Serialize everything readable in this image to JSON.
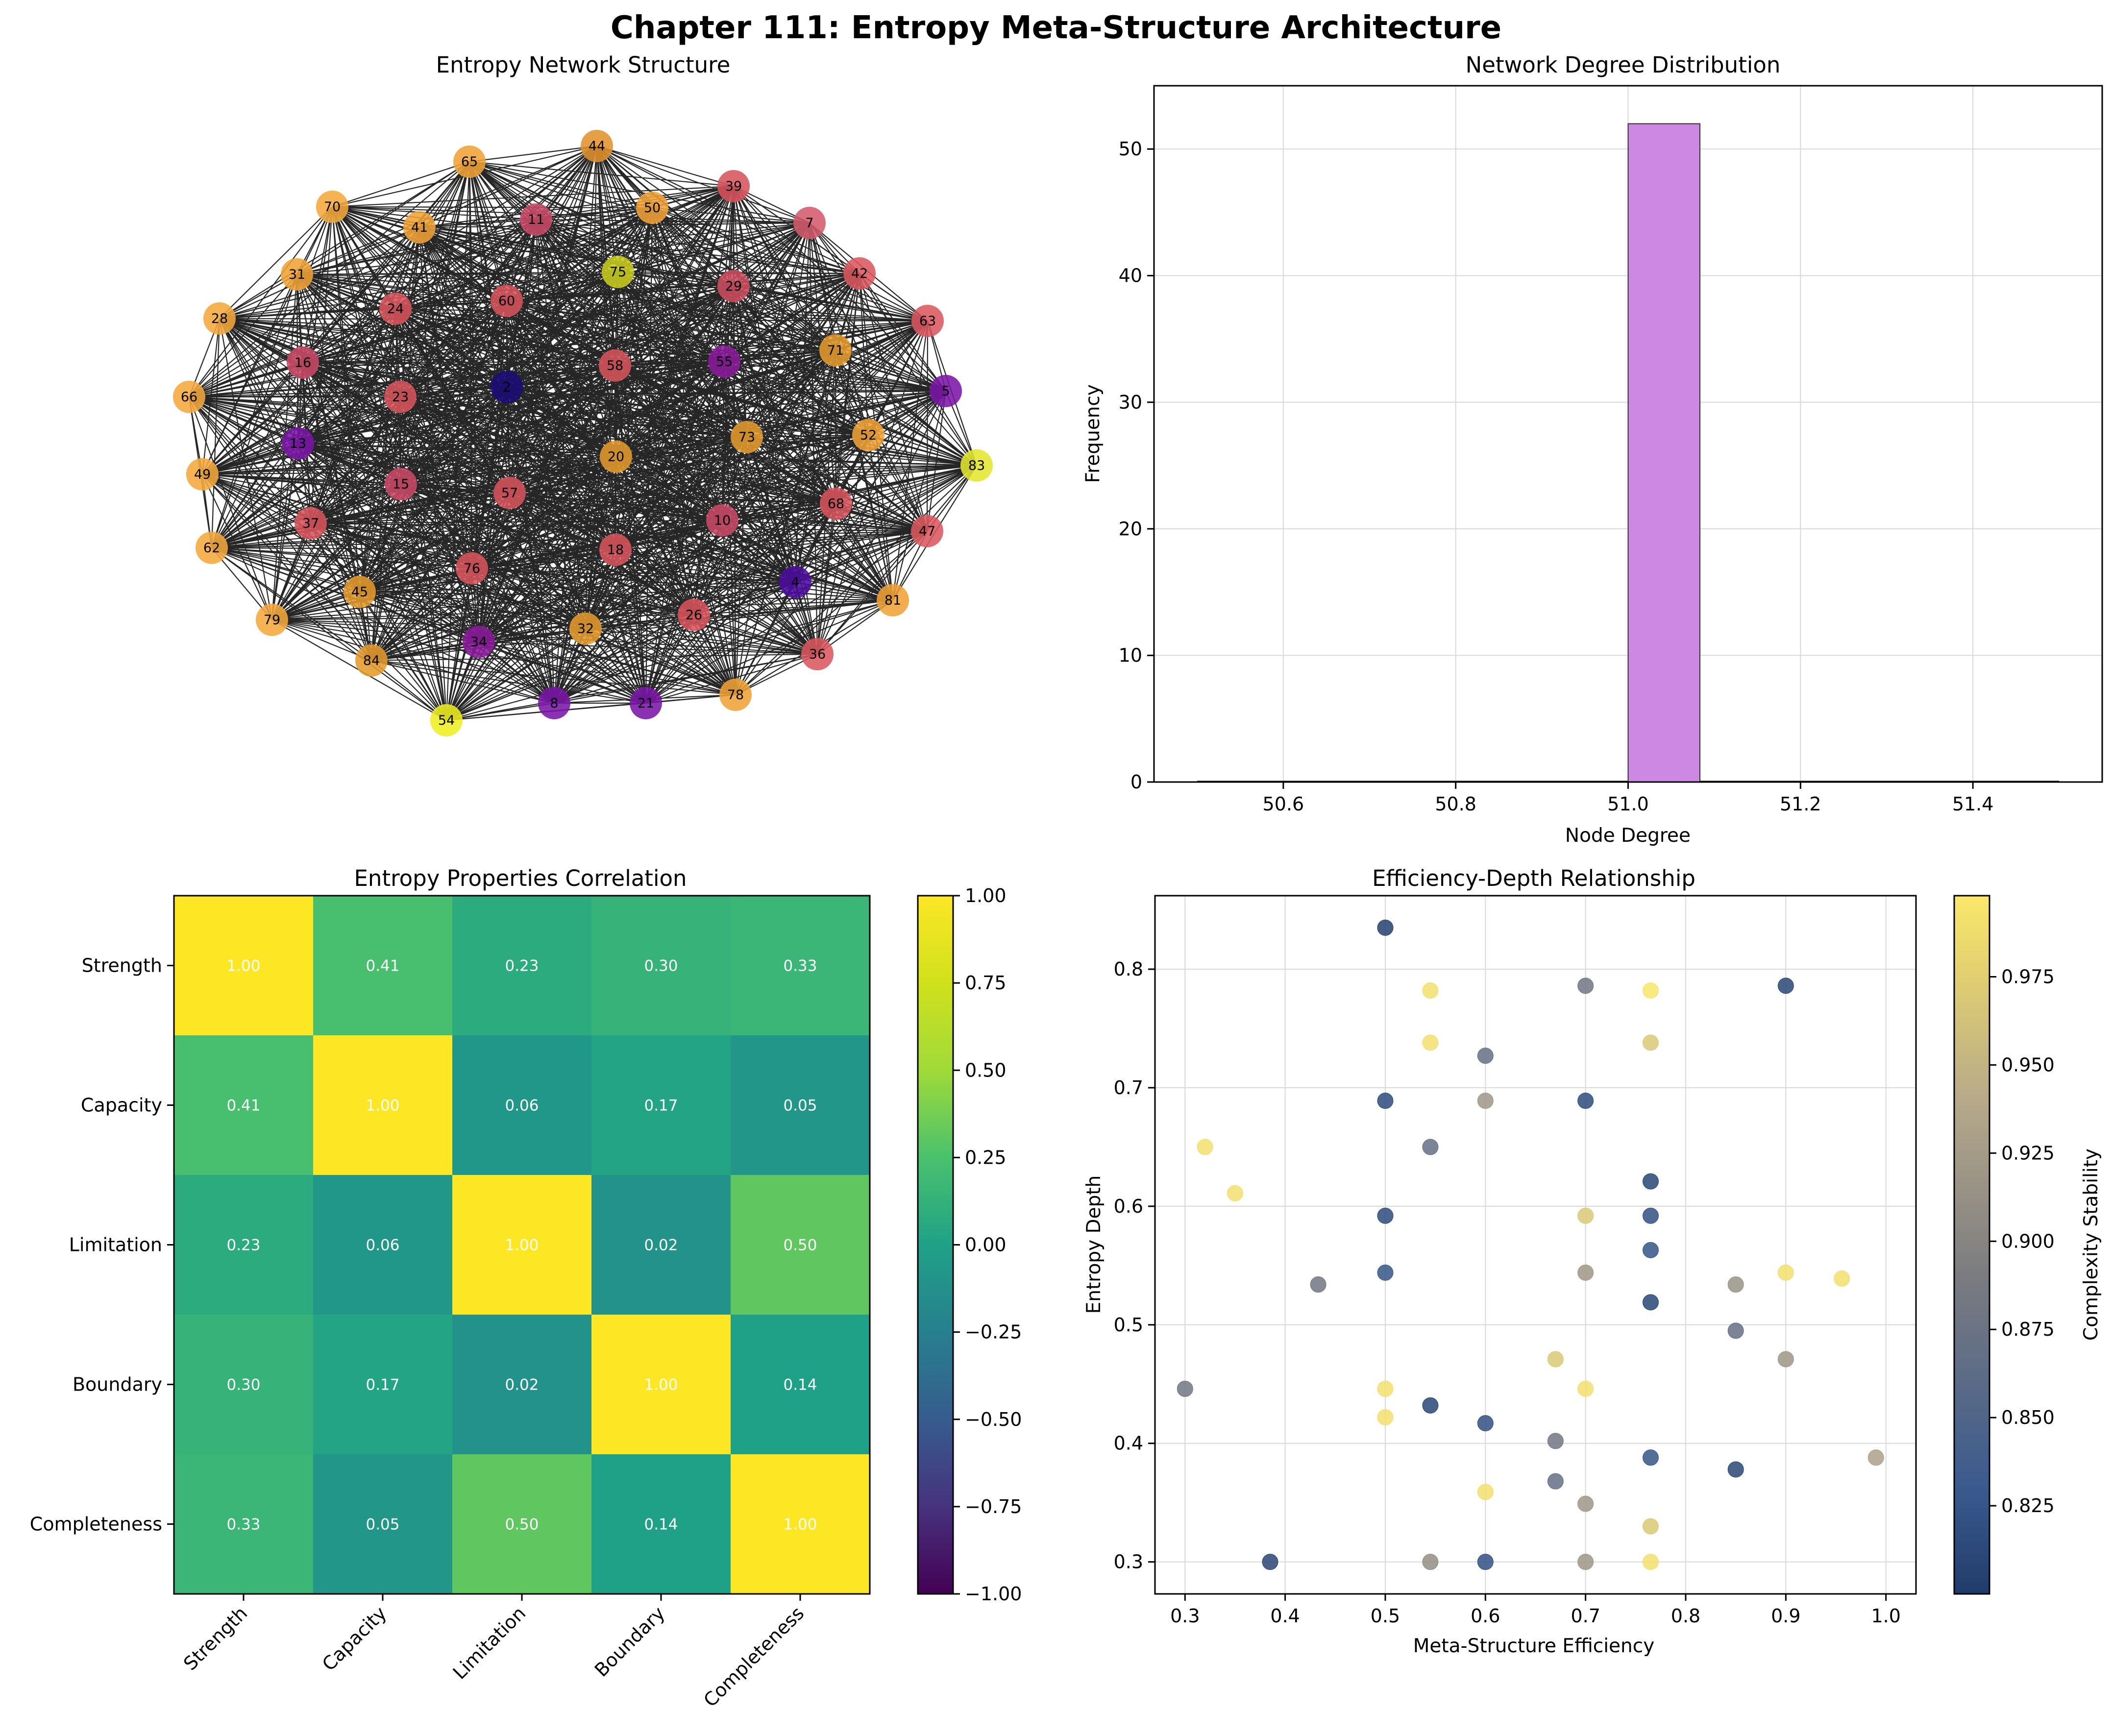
{
  "title": "Chapter 111: Entropy Meta-Structure Architecture",
  "chart_data": [
    {
      "type": "network",
      "title": "Entropy Network Structure",
      "node_count": 52,
      "edges": "complete graph (every node connected to every other node)",
      "nodes": [
        {
          "id": "44",
          "c": "#e0922d"
        },
        {
          "id": "65",
          "c": "#f0a335"
        },
        {
          "id": "39",
          "c": "#d7545c"
        },
        {
          "id": "11",
          "c": "#c94a66"
        },
        {
          "id": "50",
          "c": "#f0a335"
        },
        {
          "id": "7",
          "c": "#d45a6c"
        },
        {
          "id": "70",
          "c": "#f5a83c"
        },
        {
          "id": "41",
          "c": "#f0a335"
        },
        {
          "id": "75",
          "c": "#c8cc1e"
        },
        {
          "id": "29",
          "c": "#cc4d60"
        },
        {
          "id": "42",
          "c": "#d9585e"
        },
        {
          "id": "31",
          "c": "#f0a335"
        },
        {
          "id": "24",
          "c": "#d7545c"
        },
        {
          "id": "60",
          "c": "#d7545c"
        },
        {
          "id": "63",
          "c": "#d9585e"
        },
        {
          "id": "28",
          "c": "#f5a83c"
        },
        {
          "id": "16",
          "c": "#c94a66"
        },
        {
          "id": "58",
          "c": "#d7545c"
        },
        {
          "id": "55",
          "c": "#8a1a9c"
        },
        {
          "id": "71",
          "c": "#e59b2e"
        },
        {
          "id": "66",
          "c": "#f5a83c"
        },
        {
          "id": "23",
          "c": "#d7545c"
        },
        {
          "id": "2",
          "c": "#1a0b78"
        },
        {
          "id": "5",
          "c": "#7a16a6"
        },
        {
          "id": "13",
          "c": "#7a16a6"
        },
        {
          "id": "73",
          "c": "#e59b2e"
        },
        {
          "id": "52",
          "c": "#f0a335"
        },
        {
          "id": "49",
          "c": "#f5a83c"
        },
        {
          "id": "20",
          "c": "#e59b2e"
        },
        {
          "id": "83",
          "c": "#e3e62e"
        },
        {
          "id": "15",
          "c": "#c94a66"
        },
        {
          "id": "57",
          "c": "#d7545c"
        },
        {
          "id": "68",
          "c": "#d7545c"
        },
        {
          "id": "37",
          "c": "#d7545c"
        },
        {
          "id": "10",
          "c": "#c94a66"
        },
        {
          "id": "47",
          "c": "#d9585e"
        },
        {
          "id": "62",
          "c": "#f5a83c"
        },
        {
          "id": "18",
          "c": "#d7545c"
        },
        {
          "id": "76",
          "c": "#d7545c"
        },
        {
          "id": "45",
          "c": "#e59b2e"
        },
        {
          "id": "4",
          "c": "#4a0d9c"
        },
        {
          "id": "81",
          "c": "#f0a335"
        },
        {
          "id": "26",
          "c": "#d7545c"
        },
        {
          "id": "79",
          "c": "#f5a83c"
        },
        {
          "id": "34",
          "c": "#8a1a9c"
        },
        {
          "id": "32",
          "c": "#e59b2e"
        },
        {
          "id": "36",
          "c": "#d9585e"
        },
        {
          "id": "84",
          "c": "#e59b2e"
        },
        {
          "id": "78",
          "c": "#f0a335"
        },
        {
          "id": "8",
          "c": "#7a16a6"
        },
        {
          "id": "21",
          "c": "#7a16a6"
        },
        {
          "id": "54",
          "c": "#eeee22"
        }
      ]
    },
    {
      "type": "bar",
      "title": "Network Degree Distribution",
      "xlabel": "Node Degree",
      "ylabel": "Frequency",
      "xlim": [
        50.45,
        51.55
      ],
      "ylim": [
        0,
        55
      ],
      "xticks": [
        "50.6",
        "50.8",
        "51.0",
        "51.2",
        "51.4"
      ],
      "yticks": [
        "0",
        "10",
        "20",
        "30",
        "40",
        "50"
      ],
      "bins": [
        {
          "x0": 51.0,
          "x1": 51.0833,
          "count": 52
        }
      ],
      "color": "#cc88e2",
      "grid": true
    },
    {
      "type": "heatmap",
      "title": "Entropy Properties Correlation",
      "labels": [
        "Strength",
        "Capacity",
        "Limitation",
        "Boundary",
        "Completeness"
      ],
      "matrix": [
        [
          1.0,
          0.41,
          0.23,
          0.3,
          0.33
        ],
        [
          0.41,
          1.0,
          0.06,
          0.17,
          0.05
        ],
        [
          0.23,
          0.06,
          1.0,
          0.02,
          0.5
        ],
        [
          0.3,
          0.17,
          0.02,
          1.0,
          0.14
        ],
        [
          0.33,
          0.05,
          0.5,
          0.14,
          1.0
        ]
      ],
      "colormap": "viridis",
      "vmin": -1.0,
      "vmax": 1.0,
      "colorbar_ticks": [
        "1.00",
        "0.75",
        "0.50",
        "0.25",
        "0.00",
        "−0.25",
        "−0.50",
        "−0.75",
        "−1.00"
      ]
    },
    {
      "type": "scatter",
      "title": "Efficiency-Depth Relationship",
      "xlabel": "Meta-Structure Efficiency",
      "ylabel": "Entropy Depth",
      "colorbar_label": "Complexity Stability",
      "xlim": [
        0.27,
        1.03
      ],
      "ylim": [
        0.273,
        0.862
      ],
      "xticks": [
        "0.3",
        "0.4",
        "0.5",
        "0.6",
        "0.7",
        "0.8",
        "0.9",
        "1.0"
      ],
      "yticks": [
        "0.3",
        "0.4",
        "0.5",
        "0.6",
        "0.7",
        "0.8"
      ],
      "colorbar_ticks": [
        "0.825",
        "0.850",
        "0.875",
        "0.900",
        "0.925",
        "0.950",
        "0.975"
      ],
      "cmin": 0.8,
      "cmax": 0.998,
      "colormap": "cividis",
      "grid": true,
      "points": [
        {
          "x": 0.5,
          "y": 0.835,
          "c": 0.805
        },
        {
          "x": 0.9,
          "y": 0.786,
          "c": 0.81
        },
        {
          "x": 0.545,
          "y": 0.782,
          "c": 0.99
        },
        {
          "x": 0.7,
          "y": 0.786,
          "c": 0.88
        },
        {
          "x": 0.765,
          "y": 0.782,
          "c": 0.995
        },
        {
          "x": 0.545,
          "y": 0.738,
          "c": 0.99
        },
        {
          "x": 0.6,
          "y": 0.727,
          "c": 0.87
        },
        {
          "x": 0.765,
          "y": 0.738,
          "c": 0.97
        },
        {
          "x": 0.5,
          "y": 0.689,
          "c": 0.815
        },
        {
          "x": 0.6,
          "y": 0.689,
          "c": 0.92
        },
        {
          "x": 0.7,
          "y": 0.689,
          "c": 0.815
        },
        {
          "x": 0.32,
          "y": 0.65,
          "c": 0.99
        },
        {
          "x": 0.545,
          "y": 0.65,
          "c": 0.87
        },
        {
          "x": 0.35,
          "y": 0.611,
          "c": 0.99
        },
        {
          "x": 0.765,
          "y": 0.621,
          "c": 0.81
        },
        {
          "x": 0.5,
          "y": 0.592,
          "c": 0.815
        },
        {
          "x": 0.7,
          "y": 0.592,
          "c": 0.97
        },
        {
          "x": 0.765,
          "y": 0.592,
          "c": 0.82
        },
        {
          "x": 0.765,
          "y": 0.563,
          "c": 0.825
        },
        {
          "x": 0.433,
          "y": 0.534,
          "c": 0.88
        },
        {
          "x": 0.5,
          "y": 0.544,
          "c": 0.825
        },
        {
          "x": 0.7,
          "y": 0.544,
          "c": 0.92
        },
        {
          "x": 0.765,
          "y": 0.519,
          "c": 0.81
        },
        {
          "x": 0.85,
          "y": 0.534,
          "c": 0.915
        },
        {
          "x": 0.9,
          "y": 0.544,
          "c": 0.99
        },
        {
          "x": 0.956,
          "y": 0.539,
          "c": 0.99
        },
        {
          "x": 0.85,
          "y": 0.495,
          "c": 0.87
        },
        {
          "x": 0.9,
          "y": 0.471,
          "c": 0.92
        },
        {
          "x": 0.3,
          "y": 0.446,
          "c": 0.88
        },
        {
          "x": 0.5,
          "y": 0.446,
          "c": 0.99
        },
        {
          "x": 0.67,
          "y": 0.471,
          "c": 0.97
        },
        {
          "x": 0.7,
          "y": 0.446,
          "c": 0.99
        },
        {
          "x": 0.5,
          "y": 0.422,
          "c": 0.99
        },
        {
          "x": 0.545,
          "y": 0.432,
          "c": 0.81
        },
        {
          "x": 0.6,
          "y": 0.417,
          "c": 0.82
        },
        {
          "x": 0.67,
          "y": 0.402,
          "c": 0.88
        },
        {
          "x": 0.765,
          "y": 0.388,
          "c": 0.825
        },
        {
          "x": 0.85,
          "y": 0.378,
          "c": 0.81
        },
        {
          "x": 0.99,
          "y": 0.388,
          "c": 0.93
        },
        {
          "x": 0.67,
          "y": 0.368,
          "c": 0.87
        },
        {
          "x": 0.6,
          "y": 0.359,
          "c": 0.99
        },
        {
          "x": 0.7,
          "y": 0.349,
          "c": 0.92
        },
        {
          "x": 0.765,
          "y": 0.33,
          "c": 0.97
        },
        {
          "x": 0.385,
          "y": 0.3,
          "c": 0.81
        },
        {
          "x": 0.545,
          "y": 0.3,
          "c": 0.91
        },
        {
          "x": 0.6,
          "y": 0.3,
          "c": 0.82
        },
        {
          "x": 0.7,
          "y": 0.3,
          "c": 0.92
        },
        {
          "x": 0.765,
          "y": 0.3,
          "c": 0.99
        }
      ]
    }
  ]
}
